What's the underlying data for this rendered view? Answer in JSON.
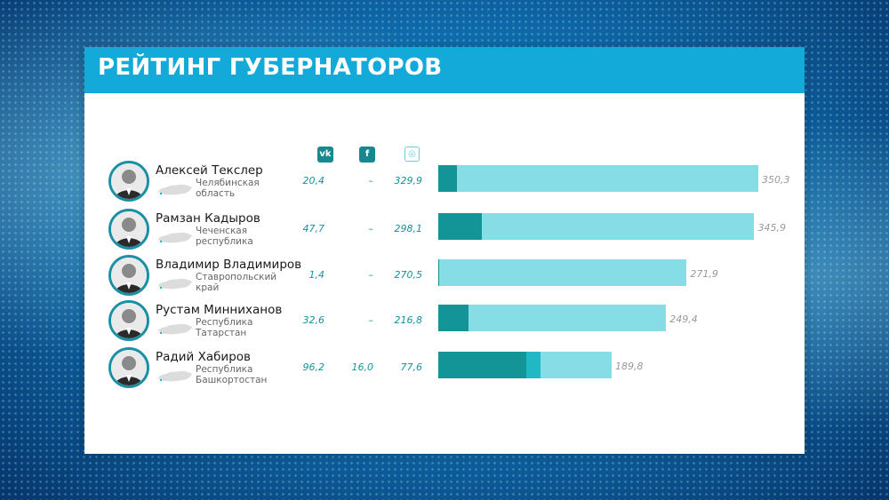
{
  "title": "РЕЙТИНГ ГУБЕРНАТОРОВ",
  "icons": {
    "vk": {
      "name": "vk-icon",
      "label": "vk",
      "color": "#15898f"
    },
    "facebook": {
      "name": "facebook-icon",
      "label": "f",
      "color": "#15898f"
    },
    "instagram": {
      "name": "instagram-icon",
      "label": "◎",
      "color": "#6fcfd6"
    }
  },
  "colors": {
    "vk": "#139496",
    "facebook": "#1fb8c4",
    "instagram": "#86dde5",
    "accent": "#13a9d9"
  },
  "chart_data": {
    "type": "bar",
    "orientation": "horizontal",
    "stacked": true,
    "title": "РЕЙТИНГ ГУБЕРНАТОРОВ",
    "categories": [
      "Алексей Текслер",
      "Рамзан Кадыров",
      "Владимир Владимиров",
      "Рустам Минниханов",
      "Радий Хабиров"
    ],
    "regions": [
      [
        "Челябинская",
        "область"
      ],
      [
        "Чеченская",
        "республика"
      ],
      [
        "Ставропольский",
        "край"
      ],
      [
        "Республика",
        "Татарстан"
      ],
      [
        "Республика",
        "Башкортостан"
      ]
    ],
    "series": [
      {
        "key": "vk",
        "values": [
          20.4,
          47.7,
          1.4,
          32.6,
          96.2
        ],
        "labels": [
          "20,4",
          "47,7",
          "1,4",
          "32,6",
          "96,2"
        ]
      },
      {
        "key": "facebook",
        "values": [
          0,
          0,
          0,
          0,
          16.0
        ],
        "labels": [
          "–",
          "–",
          "–",
          "–",
          "16,0"
        ]
      },
      {
        "key": "instagram",
        "values": [
          329.9,
          298.1,
          270.5,
          216.8,
          77.6
        ],
        "labels": [
          "329,9",
          "298,1",
          "270,5",
          "216,8",
          "77,6"
        ]
      }
    ],
    "totals": [
      350.3,
      345.9,
      271.9,
      249.4,
      189.8
    ],
    "total_labels": [
      "350,3",
      "345,9",
      "271,9",
      "249,4",
      "189,8"
    ],
    "legend": "icons above value columns",
    "grid": false
  }
}
